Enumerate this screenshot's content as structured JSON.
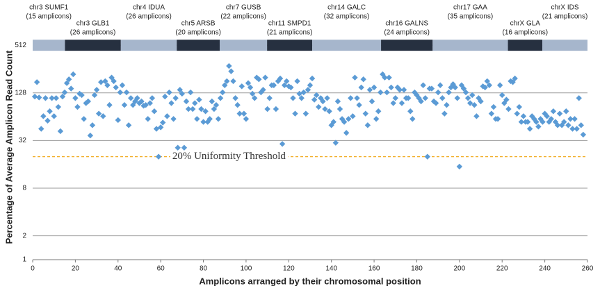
{
  "chart_data": {
    "type": "scatter",
    "y_label": "Percentage of Average Amplicon Read Count",
    "x_label": "Amplicons arranged by their chromosomal position",
    "log_base": 2,
    "grid": true,
    "color": "#5b9bd5",
    "xlim": [
      0,
      260
    ],
    "xticks": [
      0,
      20,
      40,
      60,
      80,
      100,
      120,
      140,
      160,
      180,
      200,
      220,
      240,
      260
    ],
    "ylim": [
      1,
      724
    ],
    "yticks": [
      1,
      2,
      8,
      32,
      128,
      512
    ],
    "threshold": {
      "value": 20,
      "label": "20% Uniformity Threshold",
      "color": "#f0a30a"
    },
    "band_level": 512,
    "genes": [
      {
        "name": "chr3 SUMF1",
        "amplicons": 15,
        "amplicons_label": "(15 amplicons)"
      },
      {
        "name": "chr3 GLB1",
        "amplicons": 26,
        "amplicons_label": "(26 amplicons)"
      },
      {
        "name": "chr4 IDUA",
        "amplicons": 26,
        "amplicons_label": "(26 amplicons)"
      },
      {
        "name": "chr5 ARSB",
        "amplicons": 20,
        "amplicons_label": "(20 amplicons)"
      },
      {
        "name": "chr7 GUSB",
        "amplicons": 22,
        "amplicons_label": "(22 amplicons)"
      },
      {
        "name": "chr11 SMPD1",
        "amplicons": 21,
        "amplicons_label": "(21 amplicons)"
      },
      {
        "name": "chr14 GALC",
        "amplicons": 32,
        "amplicons_label": "(32 amplicons)"
      },
      {
        "name": "chr16 GALNS",
        "amplicons": 24,
        "amplicons_label": "(24 amplicons)"
      },
      {
        "name": "chr17 GAA",
        "amplicons": 35,
        "amplicons_label": "(35 amplicons)"
      },
      {
        "name": "chrX GLA",
        "amplicons": 16,
        "amplicons_label": "(16 amplicons)"
      },
      {
        "name": "chrX IDS",
        "amplicons": 21,
        "amplicons_label": "(21 amplicons)"
      }
    ],
    "x": [
      1,
      2,
      3,
      4,
      5,
      6,
      7,
      8,
      9,
      10,
      11,
      12,
      13,
      14,
      15,
      16,
      17,
      18,
      19,
      20,
      21,
      22,
      23,
      24,
      25,
      26,
      27,
      28,
      29,
      30,
      31,
      32,
      33,
      34,
      35,
      36,
      37,
      38,
      39,
      40,
      41,
      42,
      43,
      44,
      45,
      46,
      47,
      48,
      49,
      50,
      51,
      52,
      53,
      54,
      55,
      56,
      57,
      58,
      59,
      60,
      61,
      62,
      63,
      64,
      65,
      66,
      67,
      68,
      69,
      70,
      71,
      72,
      73,
      74,
      75,
      76,
      77,
      78,
      79,
      80,
      81,
      82,
      83,
      84,
      85,
      86,
      87,
      88,
      89,
      90,
      91,
      92,
      93,
      94,
      95,
      96,
      97,
      98,
      99,
      100,
      101,
      102,
      103,
      104,
      105,
      106,
      107,
      108,
      109,
      110,
      111,
      112,
      113,
      114,
      115,
      116,
      117,
      118,
      119,
      120,
      121,
      122,
      123,
      124,
      125,
      126,
      127,
      128,
      129,
      130,
      131,
      132,
      133,
      134,
      135,
      136,
      137,
      138,
      139,
      140,
      141,
      142,
      143,
      144,
      145,
      146,
      147,
      148,
      149,
      150,
      151,
      152,
      153,
      154,
      155,
      156,
      157,
      158,
      159,
      160,
      161,
      162,
      163,
      164,
      165,
      166,
      167,
      168,
      169,
      170,
      171,
      172,
      173,
      174,
      175,
      176,
      177,
      178,
      179,
      180,
      181,
      182,
      183,
      184,
      185,
      186,
      187,
      188,
      189,
      190,
      191,
      192,
      193,
      194,
      195,
      196,
      197,
      198,
      199,
      200,
      201,
      202,
      203,
      204,
      205,
      206,
      207,
      208,
      209,
      210,
      211,
      212,
      213,
      214,
      215,
      216,
      217,
      218,
      219,
      220,
      221,
      222,
      223,
      224,
      225,
      226,
      227,
      228,
      229,
      230,
      231,
      232,
      233,
      234,
      235,
      236,
      237,
      238,
      239,
      240,
      241,
      242,
      243,
      244,
      245,
      246,
      247,
      248,
      249,
      250,
      251,
      252,
      253,
      254,
      255,
      256,
      257,
      258
    ],
    "values": [
      115,
      175,
      112,
      45,
      65,
      110,
      57,
      75,
      110,
      65,
      110,
      85,
      42,
      115,
      130,
      170,
      190,
      145,
      220,
      110,
      85,
      125,
      120,
      60,
      95,
      100,
      37,
      50,
      120,
      140,
      70,
      175,
      65,
      180,
      160,
      90,
      200,
      180,
      150,
      58,
      130,
      160,
      90,
      130,
      50,
      110,
      90,
      100,
      110,
      95,
      100,
      88,
      90,
      60,
      95,
      110,
      75,
      45,
      20,
      47,
      54,
      115,
      65,
      130,
      95,
      60,
      110,
      26,
      140,
      125,
      26,
      100,
      80,
      130,
      80,
      95,
      60,
      105,
      80,
      55,
      75,
      55,
      60,
      100,
      80,
      90,
      60,
      110,
      130,
      160,
      180,
      280,
      240,
      180,
      110,
      90,
      70,
      155,
      70,
      60,
      170,
      150,
      125,
      110,
      200,
      190,
      130,
      140,
      200,
      80,
      110,
      160,
      160,
      80,
      180,
      195,
      29,
      160,
      180,
      155,
      150,
      110,
      70,
      180,
      125,
      110,
      130,
      70,
      140,
      160,
      195,
      105,
      120,
      85,
      110,
      100,
      80,
      110,
      75,
      50,
      55,
      30,
      100,
      80,
      60,
      55,
      40,
      60,
      110,
      65,
      200,
      110,
      90,
      150,
      190,
      70,
      50,
      140,
      100,
      150,
      60,
      75,
      130,
      220,
      200,
      130,
      200,
      150,
      95,
      110,
      150,
      140,
      95,
      140,
      110,
      110,
      75,
      60,
      130,
      120,
      110,
      100,
      160,
      110,
      20,
      145,
      145,
      100,
      95,
      130,
      160,
      110,
      70,
      90,
      130,
      150,
      165,
      150,
      110,
      15,
      160,
      145,
      130,
      110,
      95,
      120,
      90,
      65,
      110,
      100,
      155,
      150,
      180,
      160,
      70,
      85,
      60,
      60,
      160,
      120,
      95,
      105,
      80,
      180,
      175,
      195,
      70,
      85,
      55,
      65,
      55,
      55,
      45,
      65,
      60,
      55,
      48,
      60,
      55,
      70,
      65,
      55,
      60,
      75,
      55,
      50,
      70,
      50,
      55,
      75,
      50,
      60,
      45,
      60,
      45,
      110,
      50,
      38
    ]
  }
}
